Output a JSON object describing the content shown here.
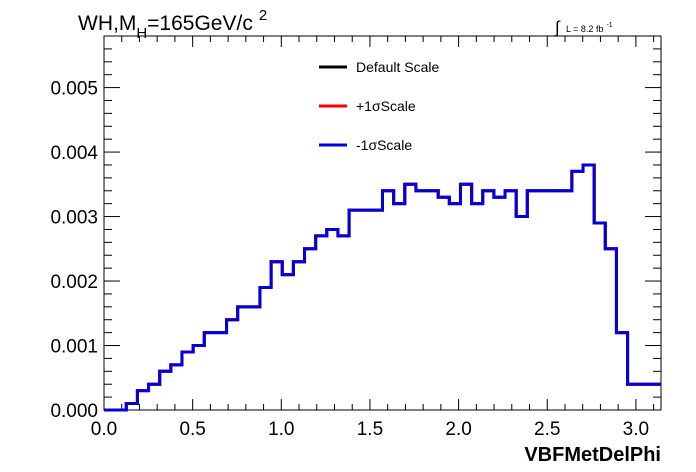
{
  "chart_data": {
    "type": "line",
    "title": {
      "main": "WH,M",
      "subscript": "H",
      "rest": "=165GeV/c",
      "superscript": "2"
    },
    "lumi": {
      "integral": "∫",
      "text": "L = 8.2 fb",
      "superscript": "-1"
    },
    "xlabel": "VBFMetDelPhi",
    "ylabel": "",
    "xlim": [
      0.0,
      3.1416
    ],
    "ylim": [
      0.0,
      0.0058
    ],
    "x_ticks": [
      "0.0",
      "0.5",
      "1.0",
      "1.5",
      "2.0",
      "2.5",
      "3.0"
    ],
    "y_ticks": [
      "0.000",
      "0.001",
      "0.002",
      "0.003",
      "0.004",
      "0.005"
    ],
    "grid": false,
    "legend_position": "top-center",
    "bin_edges": [
      0.0,
      0.0628,
      0.1257,
      0.1885,
      0.2513,
      0.3142,
      0.377,
      0.4398,
      0.5027,
      0.5655,
      0.6283,
      0.6912,
      0.754,
      0.8168,
      0.8796,
      0.9425,
      1.0053,
      1.0681,
      1.131,
      1.1938,
      1.2566,
      1.3195,
      1.3823,
      1.4451,
      1.508,
      1.5708,
      1.6336,
      1.6965,
      1.7593,
      1.8221,
      1.885,
      1.9478,
      2.0106,
      2.0735,
      2.1363,
      2.1991,
      2.2619,
      2.3248,
      2.3876,
      2.4504,
      2.5133,
      2.5761,
      2.6389,
      2.7018,
      2.7646,
      2.8274,
      2.8903,
      2.9531,
      3.0159,
      3.0788,
      3.1416
    ],
    "series": [
      {
        "name": "Default Scale",
        "color": "#000000",
        "values": [
          0.0,
          0.0,
          0.0001,
          0.0003,
          0.0004,
          0.0006,
          0.0007,
          0.0009,
          0.001,
          0.0012,
          0.0012,
          0.0014,
          0.0016,
          0.0016,
          0.0019,
          0.0023,
          0.0021,
          0.0023,
          0.0025,
          0.0027,
          0.0028,
          0.0027,
          0.0031,
          0.0031,
          0.0031,
          0.0034,
          0.0032,
          0.0035,
          0.0034,
          0.0034,
          0.0033,
          0.0032,
          0.0035,
          0.0032,
          0.0034,
          0.0033,
          0.0034,
          0.003,
          0.0034,
          0.0034,
          0.0034,
          0.0034,
          0.0037,
          0.0038,
          0.0029,
          0.0025,
          0.0012,
          0.0004,
          0.0004,
          0.0004
        ]
      },
      {
        "name": "+1σScale",
        "color": "#ff0000",
        "values": [
          0.0,
          0.0,
          0.0001,
          0.0003,
          0.0004,
          0.0006,
          0.0007,
          0.0009,
          0.001,
          0.0012,
          0.0012,
          0.0014,
          0.0016,
          0.0016,
          0.0019,
          0.0023,
          0.0021,
          0.0023,
          0.0025,
          0.0027,
          0.0028,
          0.0027,
          0.0031,
          0.0031,
          0.0031,
          0.0034,
          0.0032,
          0.0035,
          0.0034,
          0.0034,
          0.0033,
          0.0032,
          0.0035,
          0.0032,
          0.0034,
          0.0033,
          0.0034,
          0.003,
          0.0034,
          0.0034,
          0.0034,
          0.0034,
          0.0037,
          0.0038,
          0.0029,
          0.0025,
          0.0012,
          0.0004,
          0.0004,
          0.0004
        ]
      },
      {
        "name": "-1σScale",
        "color": "#0000dd",
        "values": [
          0.0,
          0.0,
          0.0001,
          0.0003,
          0.0004,
          0.0006,
          0.0007,
          0.0009,
          0.001,
          0.0012,
          0.0012,
          0.0014,
          0.0016,
          0.0016,
          0.0019,
          0.0023,
          0.0021,
          0.0023,
          0.0025,
          0.0027,
          0.0028,
          0.0027,
          0.0031,
          0.0031,
          0.0031,
          0.0034,
          0.0032,
          0.0035,
          0.0034,
          0.0034,
          0.0033,
          0.0032,
          0.0035,
          0.0032,
          0.0034,
          0.0033,
          0.0034,
          0.003,
          0.0034,
          0.0034,
          0.0034,
          0.0034,
          0.0037,
          0.0038,
          0.0029,
          0.0025,
          0.0012,
          0.0004,
          0.0004,
          0.0004
        ]
      }
    ]
  }
}
